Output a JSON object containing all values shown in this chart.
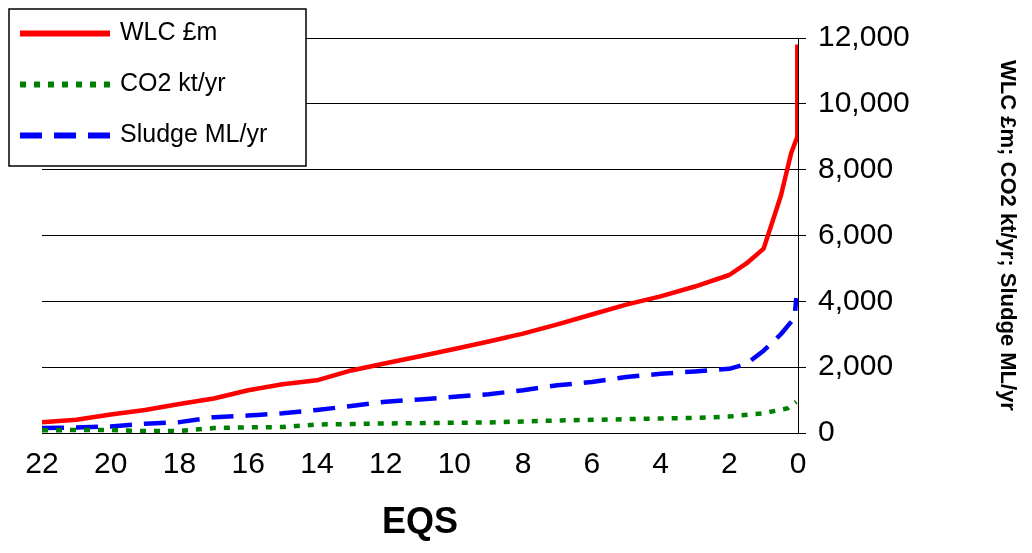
{
  "chart_data": {
    "type": "line",
    "xlabel": "EQS",
    "ylabel": "WLC £m; CO2 kt/yr; Sludge ML/yr",
    "xlim": [
      22,
      0
    ],
    "xticks": [
      22,
      20,
      18,
      16,
      14,
      12,
      10,
      8,
      6,
      4,
      2,
      0
    ],
    "ylim": [
      0,
      12000
    ],
    "yticks": [
      0,
      {
        "value": 2000,
        "label": "2,000"
      },
      {
        "value": 4000,
        "label": "4,000"
      },
      {
        "value": 6000,
        "label": "6,000"
      },
      {
        "value": 8000,
        "label": "8,000"
      },
      {
        "value": 10000,
        "label": "10,000"
      },
      {
        "value": 12000,
        "label": "12,000"
      }
    ],
    "grid": "y",
    "legend": "top left",
    "marker": "none",
    "series": [
      {
        "name": "WLC £m",
        "color": "#ff0000",
        "line_style": "solid",
        "x": [
          22,
          21,
          20,
          19,
          18,
          17,
          16,
          15,
          14,
          13,
          12,
          11,
          10,
          9,
          8,
          7,
          6,
          5,
          4,
          3,
          2,
          1.5,
          1,
          0.5,
          0.2,
          0.02,
          0.02
        ],
        "values": [
          330,
          400,
          560,
          700,
          880,
          1050,
          1300,
          1480,
          1600,
          1900,
          2120,
          2330,
          2550,
          2780,
          3020,
          3300,
          3600,
          3900,
          4150,
          4450,
          4800,
          5150,
          5600,
          7200,
          8500,
          9000,
          11800
        ]
      },
      {
        "name": "CO2 kt/yr",
        "color": "#008000",
        "line_style": "dotted",
        "x": [
          22,
          21,
          20,
          19,
          18,
          17,
          16,
          15,
          14,
          13,
          12,
          11,
          10,
          9,
          8,
          7,
          6,
          5,
          4,
          3,
          2,
          1,
          0.3,
          0.05
        ],
        "values": [
          80,
          90,
          90,
          60,
          60,
          150,
          170,
          180,
          260,
          270,
          290,
          300,
          310,
          320,
          350,
          380,
          400,
          420,
          440,
          460,
          500,
          600,
          750,
          950
        ]
      },
      {
        "name": "Sludge ML/yr",
        "color": "#0000ff",
        "line_style": "dashed",
        "x": [
          22,
          21,
          20,
          19,
          18,
          17,
          16,
          15,
          14,
          13,
          12,
          11,
          10,
          9,
          8,
          7,
          6,
          5,
          4,
          3,
          2,
          1.5,
          1,
          0.5,
          0.1,
          0.05
        ],
        "values": [
          150,
          170,
          200,
          280,
          330,
          480,
          530,
          600,
          700,
          820,
          950,
          1020,
          1100,
          1180,
          1300,
          1450,
          1550,
          1700,
          1800,
          1870,
          1950,
          2100,
          2500,
          3000,
          3500,
          4100
        ]
      }
    ]
  }
}
